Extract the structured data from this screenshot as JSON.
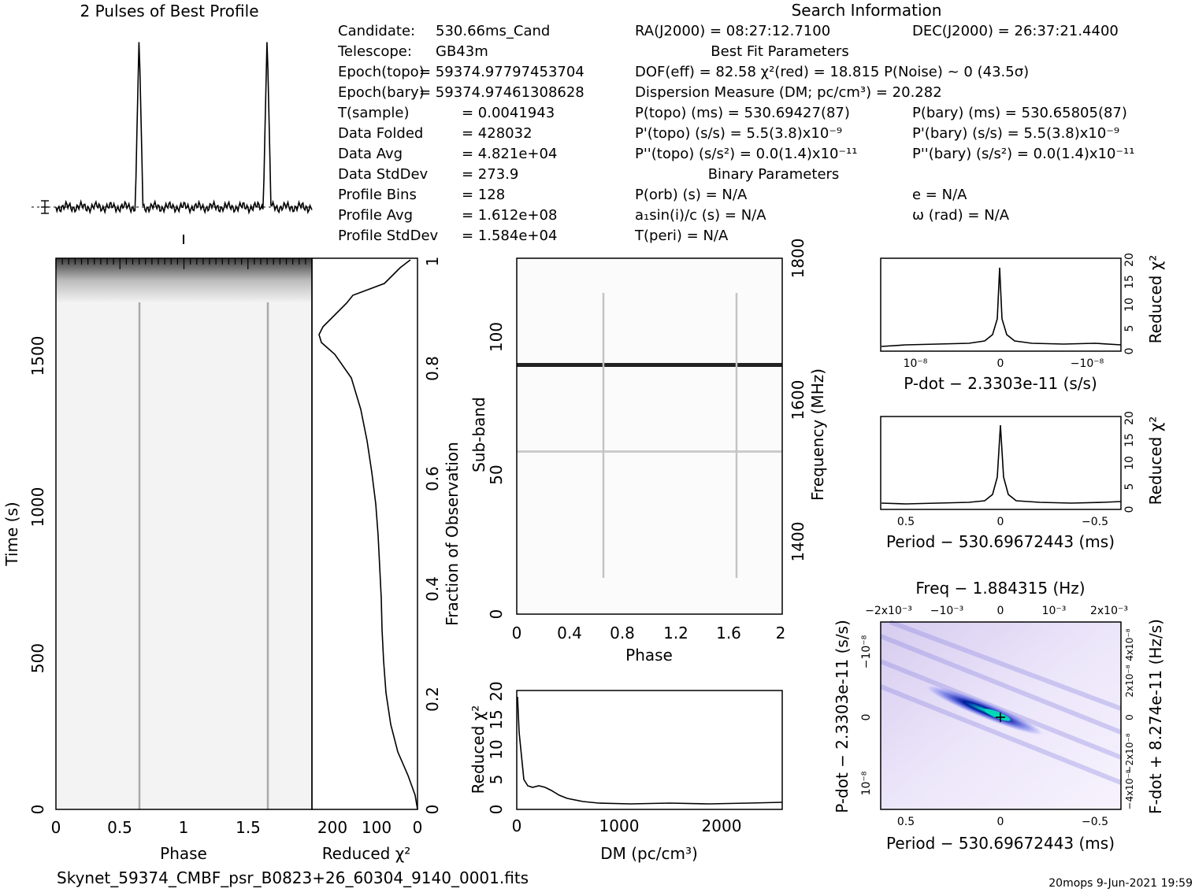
{
  "profile": {
    "title": "2 Pulses of Best Profile",
    "pulse_phases": [
      0.65,
      1.65
    ]
  },
  "candidate": [
    {
      "label": "Candidate:",
      "value": "530.66ms_Cand"
    },
    {
      "label": "Telescope:",
      "value": "GB43m"
    },
    {
      "label": "Epoch(topo)",
      "value": "= 59374.97797453704"
    },
    {
      "label": "Epoch(bary)",
      "value": "= 59374.97461308628"
    },
    {
      "label": "T(sample)",
      "value": "=   0.0041943"
    },
    {
      "label": "Data Folded",
      "value": "=   428032"
    },
    {
      "label": "Data Avg",
      "value": "=   4.821e+04"
    },
    {
      "label": "Data StdDev",
      "value": "=   273.9"
    },
    {
      "label": "Profile Bins",
      "value": "=   128"
    },
    {
      "label": "Profile Avg",
      "value": "=   1.612e+08"
    },
    {
      "label": "Profile StdDev",
      "value": "=   1.584e+04"
    }
  ],
  "search": {
    "title": "Search Information",
    "ra": "RA(J2000) = 08:27:12.7100",
    "dec": "DEC(J2000) = 26:37:21.4400",
    "best_fit_title": "Best Fit Parameters",
    "dof": "DOF(eff) = 82.58   χ²(red) = 18.815   P(Noise) ~ 0    (43.5σ)",
    "dm": "Dispersion Measure (DM; pc/cm³) = 20.282",
    "ptopo": "P(topo) (ms) =  530.69427(87)",
    "pbary": "P(bary) (ms) =  530.65805(87)",
    "pdtopo": "P'(topo) (s/s) =  5.5(3.8)x10⁻⁹",
    "pdbary": "P'(bary) (s/s) =  5.5(3.8)x10⁻⁹",
    "pddtopo": "P''(topo) (s/s²) = 0.0(1.4)x10⁻¹¹",
    "pddbary": "P''(bary) (s/s²) = 0.0(1.4)x10⁻¹¹",
    "binary_title": "Binary Parameters",
    "porb": "P(orb) (s) = N/A",
    "ecc": "e = N/A",
    "a1": "a₁sin(i)/c (s) = N/A",
    "omega": "ω (rad) = N/A",
    "tperi": "T(peri) = N/A"
  },
  "time_phase": {
    "xlabel": "Phase",
    "ylabel": "Time (s)",
    "xticks": [
      "0",
      "0.5",
      "1",
      "1.5"
    ],
    "yticks": [
      "0",
      "500",
      "1000",
      "1500"
    ],
    "xlim": [
      0,
      2
    ],
    "ylim": [
      0,
      1820
    ]
  },
  "chi_time": {
    "xlabel": "Reduced χ²",
    "xticks": [
      "200",
      "100",
      "0"
    ],
    "ylabel_right": "Fraction of Observation",
    "yticks_right": [
      "0",
      "0.2",
      "0.4",
      "0.6",
      "0.8",
      "1"
    ]
  },
  "subband": {
    "xlabel": "Phase",
    "ylabel": "Sub-band",
    "ylabel_right": "Frequency (MHz)",
    "xticks": [
      "0",
      "0.4",
      "0.8",
      "1.2",
      "1.6",
      "2"
    ],
    "yticks": [
      "0",
      "50",
      "100"
    ],
    "yticks_right": [
      "1400",
      "1600",
      "1800"
    ]
  },
  "dm_chi": {
    "xlabel": "DM (pc/cm³)",
    "ylabel": "Reduced χ²",
    "xticks": [
      "0",
      "1000",
      "2000"
    ],
    "yticks": [
      "0",
      "5",
      "10",
      "15",
      "20"
    ]
  },
  "pdot_chi": {
    "xlabel": "P-dot − 2.3303e-11 (s/s)",
    "ylabel": "Reduced χ²",
    "xticks": [
      "10⁻⁸",
      "0",
      "−10⁻⁸"
    ],
    "yticks": [
      "0",
      "5",
      "10",
      "15",
      "20"
    ]
  },
  "period_chi": {
    "xlabel": "Period − 530.69672443 (ms)",
    "ylabel": "Reduced χ²",
    "xticks": [
      "0.5",
      "0",
      "−0.5"
    ],
    "yticks": [
      "0",
      "5",
      "10",
      "15",
      "20"
    ]
  },
  "ppdot": {
    "title": "Freq − 1.884315 (Hz)",
    "xlabel": "Period − 530.69672443 (ms)",
    "ylabel": "P-dot − 2.3303e-11 (s/s)",
    "ylabel_right": "F-dot + 8.274e-11 (Hz/s)",
    "xticks": [
      "0.5",
      "0",
      "−0.5"
    ],
    "xticks_top": [
      "−2x10⁻³",
      "−10⁻³",
      "0",
      "10⁻³",
      "2x10⁻³"
    ],
    "yticks": [
      "10⁻⁸",
      "0",
      "−10⁻⁸"
    ],
    "yticks_right": [
      "−4x10⁻⁸",
      "−2x10⁻⁸",
      "0",
      "2x10⁻⁸",
      "4x10⁻⁸"
    ]
  },
  "footer": {
    "filename": "Skynet_59374_CMBF_psr_B0823+26_60304_9140_0001.fits",
    "stamp": "20mops  9-Jun-2021 19:59"
  },
  "chart_data": [
    {
      "type": "line",
      "name_hint": "profile",
      "x": [
        0,
        0.5,
        0.62,
        0.65,
        0.68,
        1.0,
        1.5,
        1.62,
        1.65,
        1.68,
        2.0
      ],
      "values": [
        0,
        0.02,
        0.05,
        1.0,
        0.05,
        0.0,
        0.02,
        0.05,
        1.0,
        0.05,
        0.0
      ]
    },
    {
      "type": "line",
      "name_hint": "dm_vs_chi2",
      "x": [
        0,
        20,
        60,
        120,
        200,
        300,
        400,
        600,
        1000,
        2000,
        2600
      ],
      "values": [
        18.8,
        12,
        5,
        3.5,
        3.4,
        2,
        1.2,
        0.9,
        1.0,
        1.0,
        1.1
      ],
      "xlim": [
        0,
        2600
      ],
      "ylim": [
        0,
        20
      ]
    },
    {
      "type": "line",
      "name_hint": "chi2_vs_fraction",
      "x": [
        0,
        0.05,
        0.2,
        0.4,
        0.6,
        0.85,
        0.9,
        0.95,
        1.0
      ],
      "values": [
        5,
        20,
        60,
        80,
        100,
        230,
        190,
        140,
        20
      ],
      "xlim": [
        250,
        0
      ],
      "ylim": [
        0,
        1
      ]
    }
  ]
}
